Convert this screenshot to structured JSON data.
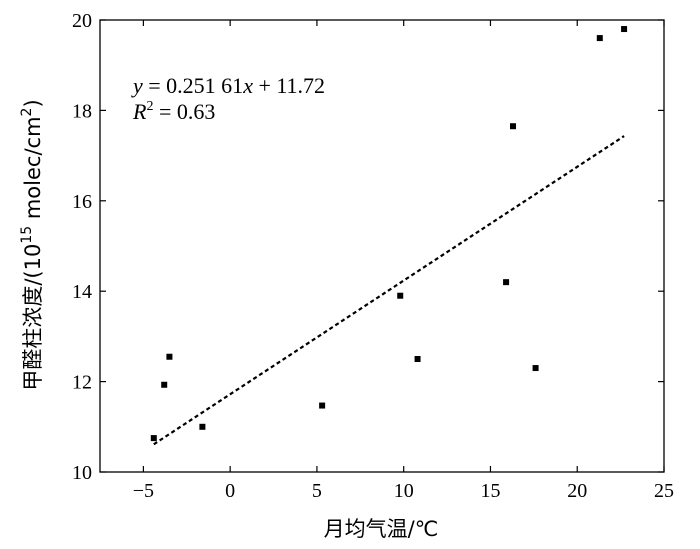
{
  "chart_data": {
    "type": "scatter",
    "xlabel": "月均气温/℃",
    "ylabel": "甲醛柱浓度/(10^15 molec/cm^2)",
    "ylabel_parts": {
      "prefix": "甲醛柱浓度/(10",
      "sup1": "15",
      "mid": " molec/cm",
      "sup2": "2",
      "suffix": ")"
    },
    "xlim": [
      -7.5,
      25
    ],
    "ylim": [
      10,
      20
    ],
    "xticks": [
      -5,
      0,
      5,
      10,
      15,
      20,
      25
    ],
    "xtick_labels": [
      "−5",
      "0",
      "5",
      "10",
      "15",
      "20",
      "25"
    ],
    "yticks": [
      10,
      12,
      14,
      16,
      18,
      20
    ],
    "ytick_labels": [
      "10",
      "12",
      "14",
      "16",
      "18",
      "20"
    ],
    "grid": false,
    "series": [
      {
        "points": [
          {
            "x": -4.4,
            "y": 10.75
          },
          {
            "x": -3.8,
            "y": 11.93
          },
          {
            "x": -3.5,
            "y": 12.55
          },
          {
            "x": -1.6,
            "y": 11.0
          },
          {
            "x": 5.3,
            "y": 11.47
          },
          {
            "x": 9.8,
            "y": 13.9
          },
          {
            "x": 10.8,
            "y": 12.5
          },
          {
            "x": 15.9,
            "y": 14.2
          },
          {
            "x": 16.3,
            "y": 17.65
          },
          {
            "x": 17.6,
            "y": 12.3
          },
          {
            "x": 21.3,
            "y": 19.6
          },
          {
            "x": 22.7,
            "y": 19.8
          }
        ]
      }
    ],
    "trendline": {
      "slope": 0.25161,
      "intercept": 11.72,
      "x_range": [
        -4.4,
        22.7
      ],
      "style": "dashed"
    },
    "annotation": {
      "equation_y": "y",
      "equation_rest": " = 0.251 61",
      "equation_x": "x",
      "equation_tail": " + 11.72",
      "r2_label": "R",
      "r2_sup": "2",
      "r2_value": " = 0.63"
    }
  }
}
